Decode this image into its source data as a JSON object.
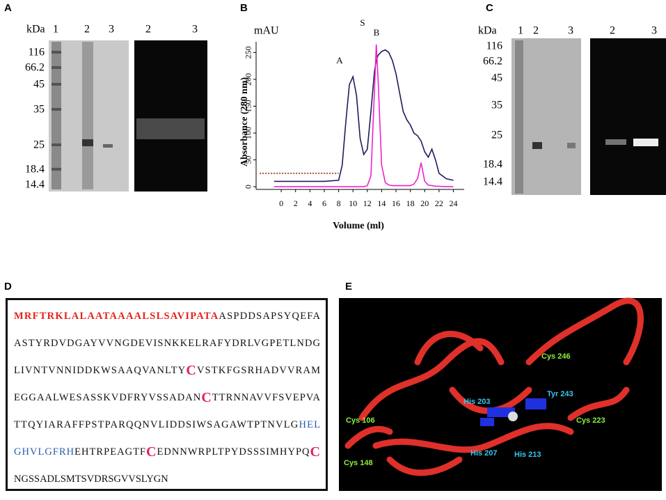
{
  "panels": {
    "A": {
      "letter": "A",
      "unit": "kDa",
      "lanes_left": [
        "1",
        "2",
        "3"
      ],
      "lanes_right": [
        "2",
        "3"
      ],
      "markers": [
        "116",
        "66.2",
        "45",
        "35",
        "25",
        "18.4",
        "14.4"
      ]
    },
    "C": {
      "letter": "C",
      "unit": "kDa",
      "lanes_left": [
        "1",
        "2",
        "3"
      ],
      "lanes_right": [
        "2",
        "3"
      ],
      "markers": [
        "116",
        "66.2",
        "45",
        "35",
        "25",
        "18.4",
        "14.4"
      ]
    },
    "D": {
      "letter": "D",
      "lines": [
        [
          {
            "text": "MRFTRKLALAATAAAALSLSAVIPATA",
            "style": "signal"
          },
          {
            "text": "ASPDDSAPSYQEFA",
            "style": "plain"
          }
        ],
        [
          {
            "text": "ASTYRDVDGAYVVNGDEVISNKKELRAFYDRLVGPETLNDG",
            "style": "plain"
          }
        ],
        [
          {
            "text": "LIVNTVNNIDDKWSAAQVANLTY",
            "style": "plain"
          },
          {
            "text": "C",
            "style": "cys"
          },
          {
            "text": "VSTKFGSRHADVVRAM",
            "style": "plain"
          }
        ],
        [
          {
            "text": "EGGAALWESASSKVDFRYVSSADAN",
            "style": "plain"
          },
          {
            "text": "C",
            "style": "cys"
          },
          {
            "text": "TTRNNAVVFSVEPVA",
            "style": "plain"
          }
        ],
        [
          {
            "text": "TTQYIARAFFPSTPARQQNVLIDDSIWSAGAWTPTNVLG",
            "style": "plain"
          },
          {
            "text": "HEL",
            "style": "motif"
          }
        ],
        [
          {
            "text": "GHVLGFRH",
            "style": "motif"
          },
          {
            "text": "EHTRPEAGTF",
            "style": "plain"
          },
          {
            "text": "C",
            "style": "cys"
          },
          {
            "text": "EDNNWRPLTPYDSSSIMHYPQ",
            "style": "plain"
          },
          {
            "text": "C",
            "style": "cys"
          }
        ],
        [
          {
            "text": "NGSSADLSMTSVDRSGVVSLYGN",
            "style": "plain"
          }
        ]
      ]
    },
    "E": {
      "letter": "E",
      "residues": [
        {
          "text": "Cys 246",
          "kind": "cys"
        },
        {
          "text": "Tyr 243",
          "kind": "active"
        },
        {
          "text": "His 203",
          "kind": "active"
        },
        {
          "text": "Cys 106",
          "kind": "cys"
        },
        {
          "text": "Cys 223",
          "kind": "cys"
        },
        {
          "text": "Cys 148",
          "kind": "cys"
        },
        {
          "text": "His 207",
          "kind": "active"
        },
        {
          "text": "His 213",
          "kind": "active"
        }
      ],
      "colors": {
        "cys": "#8cf03c",
        "active": "#38c8f0"
      }
    }
  },
  "chart_data": {
    "type": "line",
    "letter": "B",
    "y_unit": "mAU",
    "ylabel": "Absorbance    (280 nm)",
    "xlabel": "Volume (ml)",
    "annotations": [
      "A",
      "S",
      "B"
    ],
    "series": [
      {
        "color": "#1c1c5c",
        "x": [
          -1,
          0,
          2,
          4,
          6,
          8,
          8.5,
          9,
          9.5,
          10,
          10.5,
          11,
          11.5,
          12,
          12.5,
          13,
          13.25,
          13.5,
          14,
          14.5,
          15,
          15.5,
          16,
          16.5,
          17,
          17.5,
          18,
          18.5,
          19,
          19.5,
          20,
          20.5,
          21,
          21.5,
          22,
          23,
          24
        ],
        "values": [
          10,
          10,
          10,
          10,
          10,
          12,
          40,
          120,
          190,
          205,
          170,
          90,
          60,
          70,
          140,
          215,
          235,
          245,
          252,
          255,
          250,
          235,
          210,
          175,
          140,
          125,
          115,
          100,
          95,
          85,
          65,
          55,
          70,
          50,
          25,
          15,
          12
        ]
      },
      {
        "color": "#ee22cc",
        "x": [
          -1,
          0,
          2,
          4,
          6,
          8,
          8.5,
          9,
          9.5,
          10,
          10.5,
          11,
          11.5,
          12,
          12.5,
          13,
          13.25,
          13.5,
          14,
          14.5,
          15,
          15.5,
          16,
          16.5,
          17,
          17.5,
          18,
          18.5,
          19,
          19.5,
          20,
          20.5,
          21,
          21.5,
          22,
          23,
          24
        ],
        "values": [
          0,
          0,
          0,
          0,
          0,
          0,
          0,
          0,
          0,
          0,
          0,
          0,
          0,
          2,
          20,
          180,
          265,
          200,
          40,
          8,
          3,
          2,
          2,
          2,
          2,
          2,
          2,
          5,
          15,
          45,
          10,
          3,
          2,
          1,
          1,
          0,
          0
        ]
      },
      {
        "color": "#a0522d",
        "dashed": true,
        "x": [
          -3,
          8
        ],
        "values": [
          25,
          25
        ]
      }
    ],
    "xlim": [
      -3.5,
      25.5
    ],
    "xticks": [
      0,
      2,
      4,
      6,
      8,
      10,
      12,
      14,
      16,
      18,
      20,
      22,
      24
    ],
    "ylim": [
      -5,
      270
    ],
    "yticks": [
      0,
      50,
      100,
      150,
      200,
      250
    ]
  }
}
